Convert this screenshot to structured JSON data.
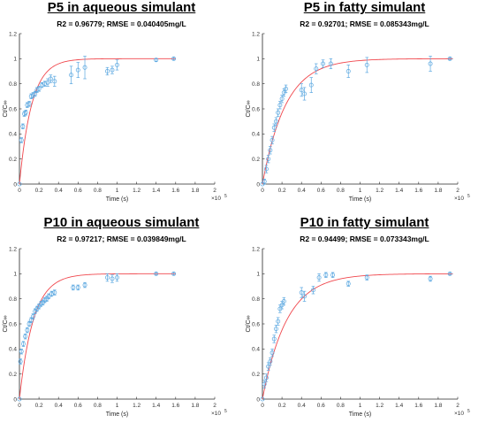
{
  "colors": {
    "fit_line": "#f0474d",
    "marker": "#5aa7e0",
    "axis": "#262626"
  },
  "chart_data": [
    {
      "type": "scatter",
      "title": "P5 in aqueous simulant",
      "subtitle": "R2 = 0.96779; RMSE = 0.040405mg/L",
      "xlabel": "Time (s)",
      "ylabel": "Ct/C∞",
      "x_exponent_label": "×10",
      "x_exponent": "5",
      "xlim": [
        0,
        2
      ],
      "ylim": [
        0,
        1.2
      ],
      "x_ticks": [
        "0",
        "0.2",
        "0.4",
        "0.6",
        "0.8",
        "1",
        "1.2",
        "1.4",
        "1.6",
        "1.8",
        "2"
      ],
      "y_ticks": [
        "0",
        "0.2",
        "0.4",
        "0.6",
        "0.8",
        "1",
        "1.2"
      ],
      "fit": {
        "k": 8.0,
        "xmax": 1.6
      },
      "points": [
        {
          "x": 0.0,
          "y": 0.0,
          "e": 0.0
        },
        {
          "x": 0.02,
          "y": 0.35,
          "e": 0.02
        },
        {
          "x": 0.035,
          "y": 0.46,
          "e": 0.02
        },
        {
          "x": 0.05,
          "y": 0.56,
          "e": 0.02
        },
        {
          "x": 0.065,
          "y": 0.57,
          "e": 0.02
        },
        {
          "x": 0.08,
          "y": 0.63,
          "e": 0.02
        },
        {
          "x": 0.1,
          "y": 0.64,
          "e": 0.02
        },
        {
          "x": 0.12,
          "y": 0.7,
          "e": 0.02
        },
        {
          "x": 0.14,
          "y": 0.71,
          "e": 0.02
        },
        {
          "x": 0.16,
          "y": 0.72,
          "e": 0.02
        },
        {
          "x": 0.18,
          "y": 0.75,
          "e": 0.02
        },
        {
          "x": 0.2,
          "y": 0.76,
          "e": 0.02
        },
        {
          "x": 0.23,
          "y": 0.79,
          "e": 0.02
        },
        {
          "x": 0.26,
          "y": 0.8,
          "e": 0.02
        },
        {
          "x": 0.29,
          "y": 0.81,
          "e": 0.03
        },
        {
          "x": 0.32,
          "y": 0.84,
          "e": 0.03
        },
        {
          "x": 0.36,
          "y": 0.82,
          "e": 0.04
        },
        {
          "x": 0.53,
          "y": 0.87,
          "e": 0.07
        },
        {
          "x": 0.6,
          "y": 0.91,
          "e": 0.06
        },
        {
          "x": 0.67,
          "y": 0.93,
          "e": 0.09
        },
        {
          "x": 0.9,
          "y": 0.9,
          "e": 0.03
        },
        {
          "x": 0.95,
          "y": 0.91,
          "e": 0.03
        },
        {
          "x": 1.0,
          "y": 0.95,
          "e": 0.04
        },
        {
          "x": 1.4,
          "y": 0.99,
          "e": 0.01
        },
        {
          "x": 1.58,
          "y": 1.0,
          "e": 0.01
        }
      ]
    },
    {
      "type": "scatter",
      "title": "P5 in fatty simulant",
      "subtitle": "R2 = 0.92701; RMSE = 0.085343mg/L",
      "xlabel": "Time (s)",
      "ylabel": "Ct/C∞",
      "x_exponent_label": "×10",
      "x_exponent": "5",
      "xlim": [
        0,
        2
      ],
      "ylim": [
        0,
        1.2
      ],
      "x_ticks": [
        "0",
        "0.2",
        "0.4",
        "0.6",
        "0.8",
        "1",
        "1.2",
        "1.4",
        "1.6",
        "1.8",
        "2"
      ],
      "y_ticks": [
        "0",
        "0.2",
        "0.4",
        "0.6",
        "0.8",
        "1",
        "1.2"
      ],
      "fit": {
        "k": 4.2,
        "xmax": 1.95
      },
      "points": [
        {
          "x": 0.0,
          "y": 0.0,
          "e": 0.0
        },
        {
          "x": 0.02,
          "y": 0.02,
          "e": 0.02
        },
        {
          "x": 0.04,
          "y": 0.12,
          "e": 0.03
        },
        {
          "x": 0.06,
          "y": 0.2,
          "e": 0.03
        },
        {
          "x": 0.08,
          "y": 0.27,
          "e": 0.03
        },
        {
          "x": 0.1,
          "y": 0.35,
          "e": 0.03
        },
        {
          "x": 0.12,
          "y": 0.45,
          "e": 0.03
        },
        {
          "x": 0.14,
          "y": 0.5,
          "e": 0.03
        },
        {
          "x": 0.16,
          "y": 0.57,
          "e": 0.03
        },
        {
          "x": 0.18,
          "y": 0.63,
          "e": 0.03
        },
        {
          "x": 0.2,
          "y": 0.68,
          "e": 0.03
        },
        {
          "x": 0.22,
          "y": 0.73,
          "e": 0.03
        },
        {
          "x": 0.24,
          "y": 0.76,
          "e": 0.03
        },
        {
          "x": 0.4,
          "y": 0.75,
          "e": 0.05
        },
        {
          "x": 0.43,
          "y": 0.72,
          "e": 0.05
        },
        {
          "x": 0.5,
          "y": 0.79,
          "e": 0.06
        },
        {
          "x": 0.55,
          "y": 0.92,
          "e": 0.04
        },
        {
          "x": 0.62,
          "y": 0.96,
          "e": 0.03
        },
        {
          "x": 0.7,
          "y": 0.96,
          "e": 0.04
        },
        {
          "x": 0.88,
          "y": 0.9,
          "e": 0.05
        },
        {
          "x": 1.07,
          "y": 0.95,
          "e": 0.06
        },
        {
          "x": 1.72,
          "y": 0.96,
          "e": 0.06
        },
        {
          "x": 1.92,
          "y": 1.0,
          "e": 0.01
        }
      ]
    },
    {
      "type": "scatter",
      "title": "P10 in aqueous simulant",
      "subtitle": "R2 = 0.97217; RMSE = 0.039849mg/L",
      "xlabel": "Time (s)",
      "ylabel": "Ct/C∞",
      "x_exponent_label": "×10",
      "x_exponent": "5",
      "xlim": [
        0,
        2
      ],
      "ylim": [
        0,
        1.2
      ],
      "x_ticks": [
        "0",
        "0.2",
        "0.4",
        "0.6",
        "0.8",
        "1",
        "1.2",
        "1.4",
        "1.6",
        "1.8",
        "2"
      ],
      "y_ticks": [
        "0",
        "0.2",
        "0.4",
        "0.6",
        "0.8",
        "1",
        "1.2"
      ],
      "fit": {
        "k": 7.0,
        "xmax": 1.6
      },
      "points": [
        {
          "x": 0.0,
          "y": 0.0,
          "e": 0.0
        },
        {
          "x": 0.01,
          "y": 0.3,
          "e": 0.02
        },
        {
          "x": 0.02,
          "y": 0.38,
          "e": 0.02
        },
        {
          "x": 0.04,
          "y": 0.44,
          "e": 0.02
        },
        {
          "x": 0.06,
          "y": 0.5,
          "e": 0.02
        },
        {
          "x": 0.08,
          "y": 0.55,
          "e": 0.02
        },
        {
          "x": 0.1,
          "y": 0.6,
          "e": 0.02
        },
        {
          "x": 0.12,
          "y": 0.63,
          "e": 0.02
        },
        {
          "x": 0.14,
          "y": 0.66,
          "e": 0.02
        },
        {
          "x": 0.16,
          "y": 0.7,
          "e": 0.02
        },
        {
          "x": 0.18,
          "y": 0.72,
          "e": 0.02
        },
        {
          "x": 0.2,
          "y": 0.74,
          "e": 0.02
        },
        {
          "x": 0.22,
          "y": 0.76,
          "e": 0.02
        },
        {
          "x": 0.24,
          "y": 0.77,
          "e": 0.02
        },
        {
          "x": 0.26,
          "y": 0.79,
          "e": 0.02
        },
        {
          "x": 0.28,
          "y": 0.8,
          "e": 0.02
        },
        {
          "x": 0.3,
          "y": 0.82,
          "e": 0.02
        },
        {
          "x": 0.33,
          "y": 0.84,
          "e": 0.02
        },
        {
          "x": 0.36,
          "y": 0.85,
          "e": 0.02
        },
        {
          "x": 0.55,
          "y": 0.89,
          "e": 0.02
        },
        {
          "x": 0.6,
          "y": 0.89,
          "e": 0.02
        },
        {
          "x": 0.67,
          "y": 0.91,
          "e": 0.02
        },
        {
          "x": 0.9,
          "y": 0.97,
          "e": 0.03
        },
        {
          "x": 0.95,
          "y": 0.96,
          "e": 0.03
        },
        {
          "x": 1.0,
          "y": 0.97,
          "e": 0.03
        },
        {
          "x": 1.4,
          "y": 1.0,
          "e": 0.01
        },
        {
          "x": 1.58,
          "y": 1.0,
          "e": 0.01
        }
      ]
    },
    {
      "type": "scatter",
      "title": "P10 in fatty simulant",
      "subtitle": "R2 = 0.94499; RMSE = 0.073343mg/L",
      "xlabel": "Time (s)",
      "ylabel": "Ct/C∞",
      "x_exponent_label": "×10",
      "x_exponent": "5",
      "xlim": [
        0,
        2
      ],
      "ylim": [
        0,
        1.2
      ],
      "x_ticks": [
        "0",
        "0.2",
        "0.4",
        "0.6",
        "0.8",
        "1",
        "1.2",
        "1.4",
        "1.6",
        "1.8",
        "2"
      ],
      "y_ticks": [
        "0",
        "0.2",
        "0.4",
        "0.6",
        "0.8",
        "1",
        "1.2"
      ],
      "fit": {
        "k": 4.0,
        "xmax": 1.95
      },
      "points": [
        {
          "x": 0.0,
          "y": 0.0,
          "e": 0.0
        },
        {
          "x": 0.02,
          "y": 0.12,
          "e": 0.03
        },
        {
          "x": 0.04,
          "y": 0.17,
          "e": 0.03
        },
        {
          "x": 0.06,
          "y": 0.26,
          "e": 0.03
        },
        {
          "x": 0.08,
          "y": 0.3,
          "e": 0.03
        },
        {
          "x": 0.1,
          "y": 0.37,
          "e": 0.03
        },
        {
          "x": 0.12,
          "y": 0.48,
          "e": 0.03
        },
        {
          "x": 0.14,
          "y": 0.56,
          "e": 0.03
        },
        {
          "x": 0.16,
          "y": 0.62,
          "e": 0.03
        },
        {
          "x": 0.18,
          "y": 0.72,
          "e": 0.03
        },
        {
          "x": 0.2,
          "y": 0.75,
          "e": 0.03
        },
        {
          "x": 0.22,
          "y": 0.78,
          "e": 0.03
        },
        {
          "x": 0.4,
          "y": 0.85,
          "e": 0.04
        },
        {
          "x": 0.43,
          "y": 0.82,
          "e": 0.04
        },
        {
          "x": 0.52,
          "y": 0.87,
          "e": 0.03
        },
        {
          "x": 0.58,
          "y": 0.97,
          "e": 0.03
        },
        {
          "x": 0.65,
          "y": 0.99,
          "e": 0.02
        },
        {
          "x": 0.72,
          "y": 0.99,
          "e": 0.02
        },
        {
          "x": 0.88,
          "y": 0.92,
          "e": 0.02
        },
        {
          "x": 1.07,
          "y": 0.97,
          "e": 0.02
        },
        {
          "x": 1.72,
          "y": 0.96,
          "e": 0.02
        },
        {
          "x": 1.92,
          "y": 1.0,
          "e": 0.01
        }
      ]
    }
  ]
}
